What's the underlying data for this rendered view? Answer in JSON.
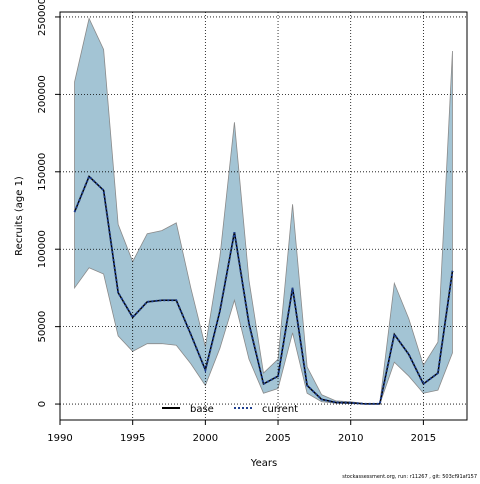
{
  "chart_data": {
    "type": "line",
    "xlabel": "Years",
    "ylabel": "Recruits (age 1)",
    "footnote": "stockassessment.org, run: r11267 , git: 503cf91af157",
    "x": [
      1991,
      1992,
      1993,
      1994,
      1995,
      1996,
      1997,
      1998,
      1999,
      2000,
      2001,
      2002,
      2003,
      2004,
      2005,
      2006,
      2007,
      2008,
      2009,
      2010,
      2011,
      2012,
      2013,
      2014,
      2015,
      2016,
      2017
    ],
    "band": {
      "color": "#a3c4d4",
      "upper": [
        208000,
        249000,
        229000,
        116000,
        92000,
        110000,
        112000,
        117000,
        75000,
        37000,
        95000,
        182000,
        80000,
        20000,
        29000,
        129000,
        24000,
        6000,
        2000,
        1500,
        300,
        300,
        78000,
        55000,
        25000,
        40000,
        228000
      ],
      "lower": [
        75000,
        88000,
        84000,
        44000,
        34000,
        39000,
        39000,
        38000,
        26000,
        12000,
        36000,
        67000,
        29000,
        7000,
        10000,
        46000,
        7000,
        1500,
        500,
        300,
        50,
        50,
        27000,
        18000,
        7000,
        9000,
        33000
      ]
    },
    "series": [
      {
        "name": "base",
        "color": "#000000",
        "dash": false,
        "values": [
          124000,
          147000,
          138000,
          72000,
          56000,
          66000,
          67000,
          67000,
          45000,
          22000,
          60000,
          111000,
          52000,
          13000,
          18000,
          75000,
          12000,
          3000,
          1000,
          800,
          100,
          100,
          45000,
          32000,
          13000,
          20000,
          86000
        ]
      },
      {
        "name": "current",
        "color": "#1f3f8f",
        "dash": true,
        "values": [
          124000,
          147000,
          138000,
          72000,
          56000,
          66000,
          67000,
          67000,
          45000,
          22000,
          60000,
          111000,
          52000,
          13000,
          18000,
          75000,
          12000,
          3000,
          1000,
          800,
          100,
          100,
          45000,
          32000,
          13000,
          20000,
          86000
        ]
      }
    ],
    "xlim": [
      1990,
      2018
    ],
    "ylim": [
      -10300,
      253200
    ],
    "xticks": [
      1990,
      1995,
      2000,
      2005,
      2010,
      2015
    ],
    "yticks": [
      0,
      50000,
      100000,
      150000,
      200000,
      250000
    ],
    "grid": true
  }
}
